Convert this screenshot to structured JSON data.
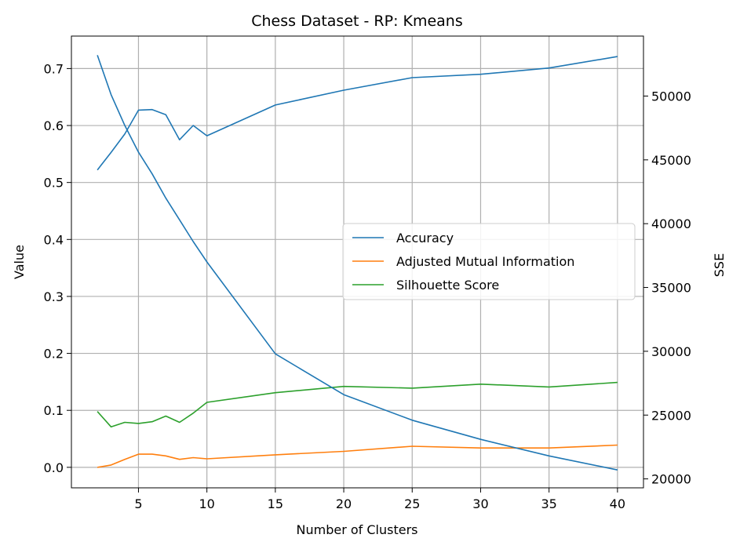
{
  "chart_data": {
    "type": "line",
    "title": "Chess Dataset - RP: Kmeans",
    "xlabel": "Number of Clusters",
    "ylabel": "Value",
    "y2label": "SSE",
    "xlim": [
      0.1,
      41.9
    ],
    "ylim": [
      -0.036,
      0.757
    ],
    "y2lim": [
      19300,
      54700
    ],
    "xticks": [
      5,
      10,
      15,
      20,
      25,
      30,
      35,
      40
    ],
    "yticks": [
      0.0,
      0.1,
      0.2,
      0.3,
      0.4,
      0.5,
      0.6,
      0.7
    ],
    "ytick_labels": [
      "0.0",
      "0.1",
      "0.2",
      "0.3",
      "0.4",
      "0.5",
      "0.6",
      "0.7"
    ],
    "y2ticks": [
      20000,
      25000,
      30000,
      35000,
      40000,
      45000,
      50000
    ],
    "grid": true,
    "legend_position": "center-right",
    "x": [
      2,
      3,
      4,
      5,
      6,
      7,
      8,
      9,
      10,
      15,
      20,
      25,
      30,
      35,
      40
    ],
    "series": [
      {
        "name": "Accuracy",
        "color": "#1f77b4",
        "axis": "left",
        "values": [
          0.522,
          0.553,
          0.585,
          0.627,
          0.628,
          0.619,
          0.575,
          0.6,
          0.582,
          0.636,
          0.662,
          0.684,
          0.69,
          0.701,
          0.721
        ]
      },
      {
        "name": "Adjusted Mutual Information",
        "color": "#ff7f0e",
        "axis": "left",
        "values": [
          0.0,
          0.004,
          0.014,
          0.023,
          0.023,
          0.02,
          0.014,
          0.017,
          0.015,
          0.022,
          0.028,
          0.037,
          0.034,
          0.034,
          0.039
        ]
      },
      {
        "name": "Silhouette Score",
        "color": "#2ca02c",
        "axis": "left",
        "values": [
          0.098,
          0.071,
          0.079,
          0.077,
          0.08,
          0.09,
          0.079,
          0.095,
          0.114,
          0.131,
          0.142,
          0.139,
          0.146,
          0.141,
          0.149
        ]
      },
      {
        "color": "#1f77b4",
        "axis": "right",
        "values": [
          53200,
          50100,
          47700,
          45600,
          43900,
          42000,
          40300,
          38600,
          37000,
          29800,
          26600,
          24600,
          23100,
          21800,
          20700
        ]
      }
    ]
  }
}
